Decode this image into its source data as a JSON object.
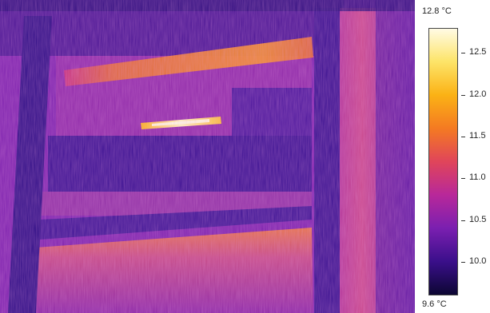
{
  "scale": {
    "max_label": "12.8 °C",
    "min_label": "9.6 °C",
    "min_value": 9.6,
    "max_value": 12.8,
    "ticks": [
      {
        "value": 12.5,
        "label": "12.5"
      },
      {
        "value": 12.0,
        "label": "12.0"
      },
      {
        "value": 11.5,
        "label": "11.5"
      },
      {
        "value": 11.0,
        "label": "11.0"
      },
      {
        "value": 10.5,
        "label": "10.5"
      },
      {
        "value": 10.0,
        "label": "10.0"
      }
    ],
    "palette": [
      "#0c0632",
      "#3a0f8a",
      "#7a1fb0",
      "#b8289a",
      "#e0455a",
      "#f47a22",
      "#fbb215",
      "#fde468",
      "#fffbe6"
    ]
  }
}
